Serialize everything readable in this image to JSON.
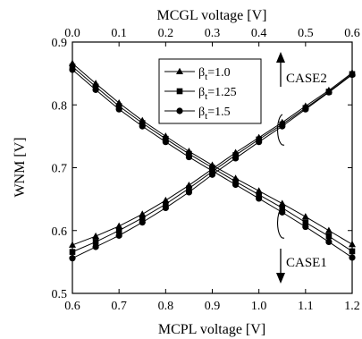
{
  "chart_data": {
    "type": "line",
    "ylabel": "WNM [V]",
    "xlabel": "MCPL voltage [V]",
    "x2label": "MCGL voltage [V]",
    "xlim": [
      0.6,
      1.2
    ],
    "x2lim": [
      0.0,
      0.6
    ],
    "ylim": [
      0.5,
      0.9
    ],
    "xticks": [
      "0.6",
      "0.7",
      "0.8",
      "0.9",
      "1.0",
      "1.1",
      "1.2"
    ],
    "x2ticks": [
      "0.0",
      "0.1",
      "0.2",
      "0.3",
      "0.4",
      "0.5",
      "0.6"
    ],
    "yticks": [
      "0.5",
      "0.6",
      "0.7",
      "0.8",
      "0.9"
    ],
    "legend_position": "top-center",
    "grid": false,
    "series": [
      {
        "name": "βt=1.0",
        "marker": "triangle",
        "group": "CASE2",
        "axis": "top",
        "x": [
          0.0,
          0.05,
          0.1,
          0.15,
          0.2,
          0.25,
          0.3,
          0.35,
          0.4,
          0.45,
          0.5,
          0.55,
          0.6
        ],
        "values": [
          0.577,
          0.591,
          0.607,
          0.626,
          0.648,
          0.672,
          0.698,
          0.724,
          0.748,
          0.772,
          0.798,
          0.823,
          0.851
        ]
      },
      {
        "name": "βt=1.25",
        "marker": "square",
        "group": "CASE2",
        "axis": "top",
        "x": [
          0.0,
          0.05,
          0.1,
          0.15,
          0.2,
          0.25,
          0.3,
          0.35,
          0.4,
          0.45,
          0.5,
          0.55,
          0.6
        ],
        "values": [
          0.566,
          0.582,
          0.6,
          0.62,
          0.642,
          0.667,
          0.694,
          0.72,
          0.745,
          0.769,
          0.795,
          0.821,
          0.849
        ]
      },
      {
        "name": "βt=1.5",
        "marker": "circle",
        "group": "CASE2",
        "axis": "top",
        "x": [
          0.0,
          0.05,
          0.1,
          0.15,
          0.2,
          0.25,
          0.3,
          0.35,
          0.4,
          0.45,
          0.5,
          0.55,
          0.6
        ],
        "values": [
          0.556,
          0.574,
          0.592,
          0.613,
          0.636,
          0.661,
          0.689,
          0.715,
          0.741,
          0.766,
          0.793,
          0.82,
          0.848
        ]
      },
      {
        "name": "βt=1.0",
        "marker": "triangle",
        "group": "CASE1",
        "axis": "bottom",
        "x": [
          0.6,
          0.65,
          0.7,
          0.75,
          0.8,
          0.85,
          0.9,
          0.95,
          1.0,
          1.05,
          1.1,
          1.15,
          1.2
        ],
        "values": [
          0.866,
          0.834,
          0.803,
          0.775,
          0.75,
          0.726,
          0.704,
          0.683,
          0.663,
          0.643,
          0.622,
          0.6,
          0.578
        ]
      },
      {
        "name": "βt=1.25",
        "marker": "square",
        "group": "CASE1",
        "axis": "bottom",
        "x": [
          0.6,
          0.65,
          0.7,
          0.75,
          0.8,
          0.85,
          0.9,
          0.95,
          1.0,
          1.05,
          1.1,
          1.15,
          1.2
        ],
        "values": [
          0.861,
          0.829,
          0.798,
          0.771,
          0.746,
          0.722,
          0.7,
          0.678,
          0.657,
          0.636,
          0.613,
          0.591,
          0.567
        ]
      },
      {
        "name": "βt=1.5",
        "marker": "circle",
        "group": "CASE1",
        "axis": "bottom",
        "x": [
          0.6,
          0.65,
          0.7,
          0.75,
          0.8,
          0.85,
          0.9,
          0.95,
          1.0,
          1.05,
          1.1,
          1.15,
          1.2
        ],
        "values": [
          0.856,
          0.824,
          0.793,
          0.766,
          0.741,
          0.717,
          0.695,
          0.673,
          0.651,
          0.629,
          0.606,
          0.582,
          0.557
        ]
      }
    ],
    "legend": [
      {
        "marker": "triangle",
        "symbol": "β",
        "sub": "t",
        "value": "=1.0"
      },
      {
        "marker": "square",
        "symbol": "β",
        "sub": "t",
        "value": "=1.25"
      },
      {
        "marker": "circle",
        "symbol": "β",
        "sub": "t",
        "value": "=1.5"
      }
    ],
    "annotations": {
      "case2": "CASE2",
      "case1": "CASE1"
    }
  }
}
